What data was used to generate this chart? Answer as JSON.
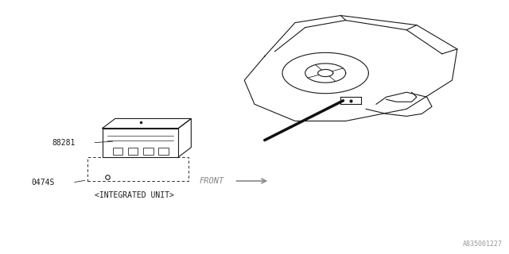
{
  "bg_color": "#ffffff",
  "line_color": "#1a1a1a",
  "diagram_color": "#333333",
  "label_88281": "88281",
  "label_0474S": "0474S",
  "label_integrated": "<INTEGRATED UNIT>",
  "label_front": "FRONT",
  "watermark": "A835001227",
  "fig_width": 6.4,
  "fig_height": 3.2,
  "dpi": 100
}
